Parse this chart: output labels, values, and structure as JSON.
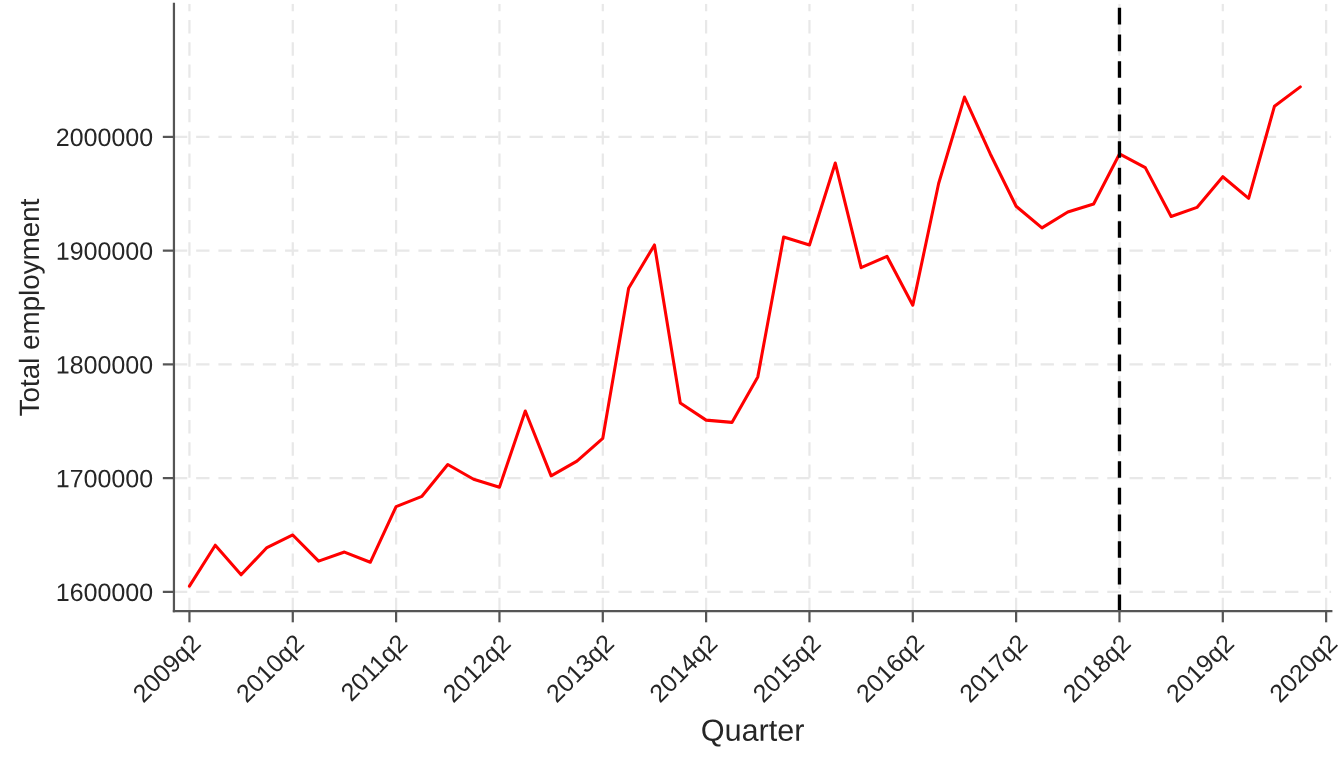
{
  "chart_data": {
    "type": "line",
    "xlabel": "Quarter",
    "ylabel": "Total employment",
    "categories": [
      "2009q2",
      null,
      null,
      null,
      "2010q2",
      null,
      null,
      null,
      "2011q2",
      null,
      null,
      null,
      "2012q2",
      null,
      null,
      null,
      "2013q2",
      null,
      null,
      null,
      "2014q2",
      null,
      null,
      null,
      "2015q2",
      null,
      null,
      null,
      "2016q2",
      null,
      null,
      null,
      "2017q2",
      null,
      null,
      null,
      "2018q2",
      null,
      null,
      null,
      "2019q2",
      null,
      null,
      null,
      "2020q2"
    ],
    "series": [
      {
        "color": "#ff0000",
        "values": [
          1605000,
          1641000,
          1615000,
          1639000,
          1650000,
          1627000,
          1635000,
          1626000,
          1675000,
          1684000,
          1712000,
          1699000,
          1692000,
          1759000,
          1702000,
          1715000,
          1735000,
          1867000,
          1905000,
          1766000,
          1751000,
          1749000,
          1789000,
          1912000,
          1905000,
          1977000,
          1885000,
          1895000,
          1852000,
          1959000,
          2035000,
          1985000,
          1939000,
          1920000,
          1934000,
          1941000,
          1985000,
          1973000,
          1930000,
          1938000,
          1965000,
          1946000,
          2027000,
          2044000,
          null
        ]
      }
    ],
    "ylim": [
      1583000,
      2117000
    ],
    "yticks": [
      1600000,
      1700000,
      1800000,
      1900000,
      2000000
    ],
    "ref_lines": [
      {
        "axis": "x",
        "value": "2018q2",
        "color": "#000000",
        "line_style": "dashed"
      }
    ],
    "grid": true,
    "legend": false,
    "marker": "none",
    "line_style": "solid"
  }
}
